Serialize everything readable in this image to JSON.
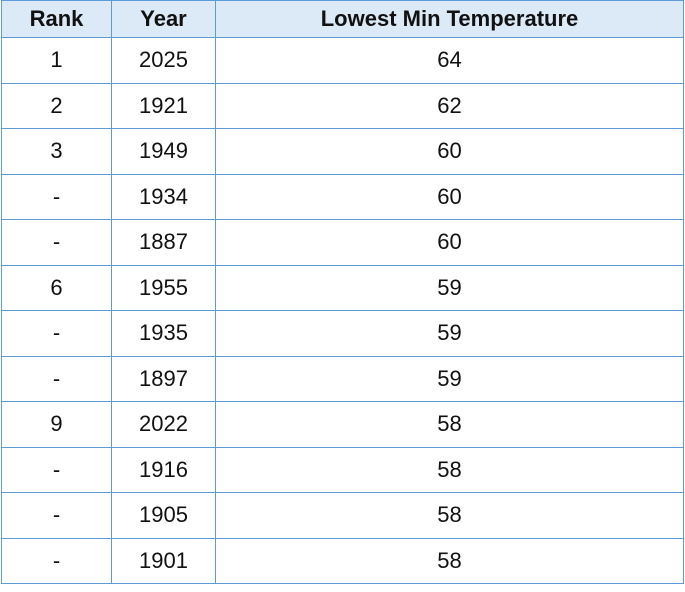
{
  "table": {
    "headers": [
      "Rank",
      "Year",
      "Lowest Min Temperature"
    ],
    "rows": [
      [
        "1",
        2025,
        64
      ],
      [
        "2",
        1921,
        62
      ],
      [
        "3",
        1949,
        60
      ],
      [
        "-",
        1934,
        60
      ],
      [
        "-",
        1887,
        60
      ],
      [
        "6",
        1955,
        59
      ],
      [
        "-",
        1935,
        59
      ],
      [
        "-",
        1897,
        59
      ],
      [
        "9",
        2022,
        58
      ],
      [
        "-",
        1916,
        58
      ],
      [
        "-",
        1905,
        58
      ],
      [
        "-",
        1901,
        58
      ]
    ]
  }
}
